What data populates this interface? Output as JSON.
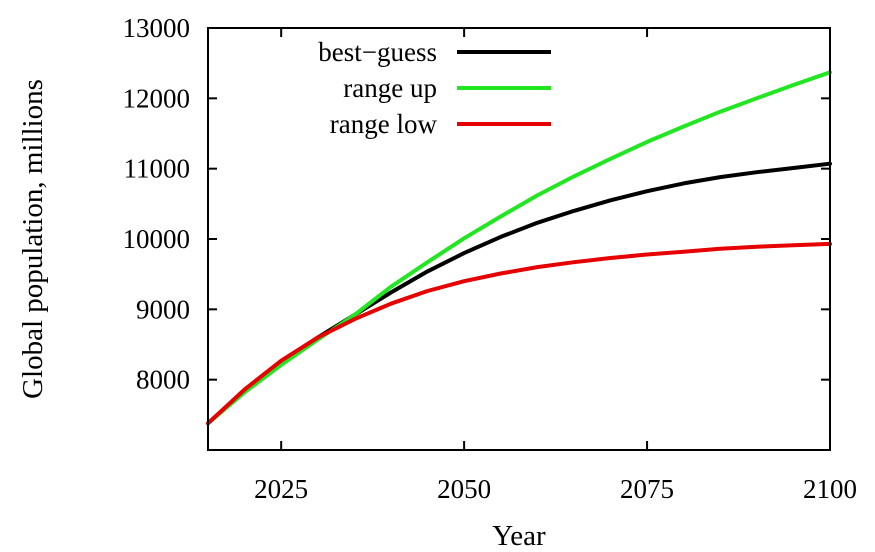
{
  "chart_data": {
    "type": "line",
    "title": "",
    "xlabel": "Year",
    "ylabel": "Global population, millions",
    "xlim": [
      2015,
      2100
    ],
    "ylim": [
      7000,
      13000
    ],
    "x_ticks": [
      2025,
      2050,
      2075,
      2100
    ],
    "y_ticks": [
      8000,
      9000,
      10000,
      11000,
      12000,
      13000
    ],
    "grid": false,
    "legend_position": "top-left",
    "x": [
      2015,
      2020,
      2025,
      2030,
      2035,
      2040,
      2045,
      2050,
      2055,
      2060,
      2065,
      2070,
      2075,
      2080,
      2085,
      2090,
      2095,
      2100
    ],
    "series": [
      {
        "name": "best−guess",
        "color": "#000000",
        "values": [
          7380,
          7850,
          8250,
          8600,
          8920,
          9240,
          9540,
          9800,
          10030,
          10230,
          10400,
          10550,
          10680,
          10790,
          10880,
          10950,
          11010,
          11070
        ]
      },
      {
        "name": "range up",
        "color": "#22e622",
        "values": [
          7380,
          7820,
          8210,
          8570,
          8920,
          9320,
          9670,
          10010,
          10320,
          10620,
          10890,
          11140,
          11380,
          11600,
          11810,
          12000,
          12190,
          12370
        ]
      },
      {
        "name": "range low",
        "color": "#e60000",
        "values": [
          7380,
          7860,
          8270,
          8600,
          8860,
          9080,
          9260,
          9400,
          9510,
          9600,
          9670,
          9730,
          9780,
          9820,
          9860,
          9890,
          9910,
          9930
        ]
      }
    ]
  }
}
